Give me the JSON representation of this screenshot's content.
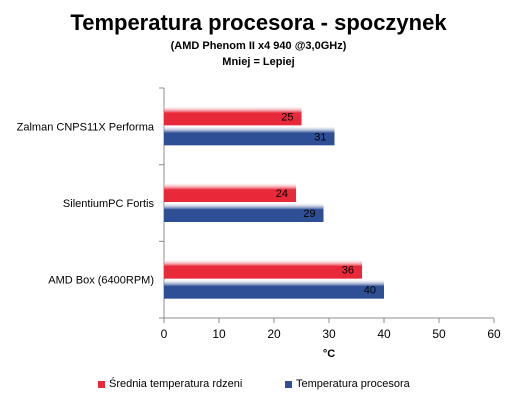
{
  "title": "Temperatura procesora - spoczynek",
  "subtitle1": "(AMD Phenom II  x4 940 @3,0GHz)",
  "subtitle2": "Mniej = Lepiej",
  "chart_data": {
    "type": "bar",
    "orientation": "horizontal",
    "categories": [
      "Zalman CNPS11X Performa",
      "SilentiumPC Fortis",
      "AMD Box (6400RPM)"
    ],
    "series": [
      {
        "name": "Średnia temperatura rdzeni",
        "values": [
          25,
          24,
          36
        ],
        "color": "#e8293a"
      },
      {
        "name": "Temperatura procesora",
        "values": [
          31,
          29,
          40
        ],
        "color": "#2e4f96"
      }
    ],
    "xlabel": "°C",
    "ylabel": "",
    "xlim": [
      0,
      60
    ],
    "xticks": [
      "0",
      "10",
      "20",
      "30",
      "40",
      "50",
      "60"
    ],
    "grid": false,
    "legend_position": "bottom"
  }
}
